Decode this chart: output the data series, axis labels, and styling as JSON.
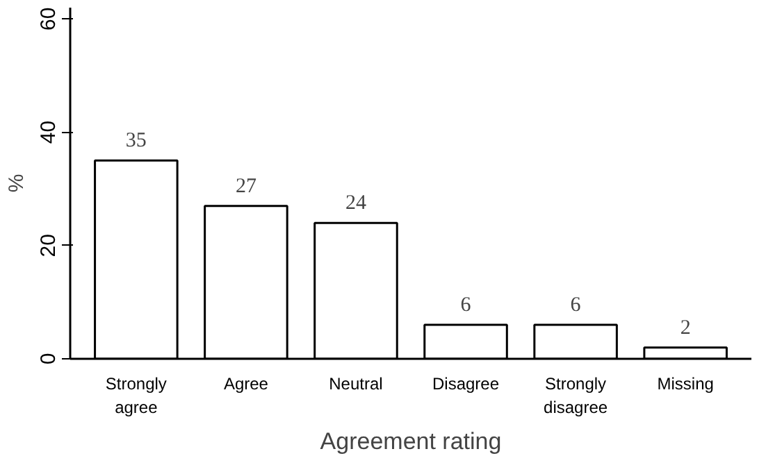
{
  "chart_data": {
    "type": "bar",
    "xlabel": "Agreement rating",
    "ylabel": "%",
    "categories": [
      "Strongly\nagree",
      "Agree",
      "Neutral",
      "Disagree",
      "Strongly\ndisagree",
      "Missing"
    ],
    "values": [
      35,
      27,
      24,
      6,
      6,
      2
    ],
    "color": "#ffffff",
    "ylim": [
      0,
      62
    ],
    "yticks": [
      0,
      20,
      40,
      60
    ],
    "grid": false,
    "data_labels": true
  }
}
